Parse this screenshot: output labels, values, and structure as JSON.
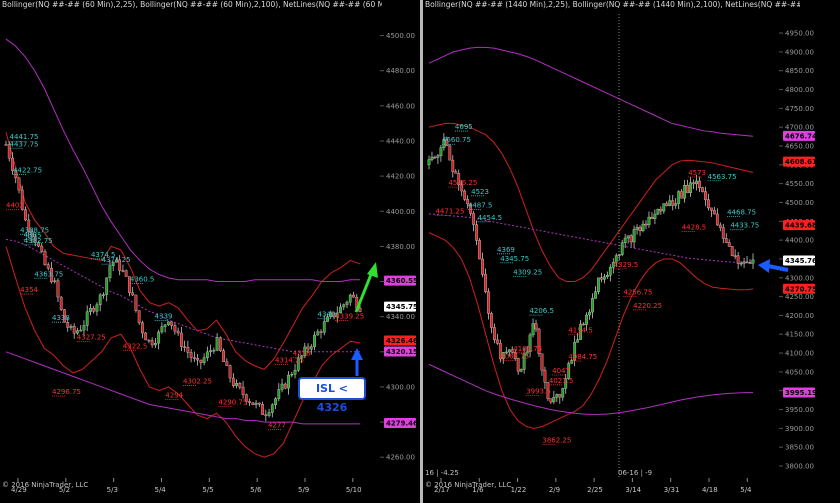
{
  "left_panel": {
    "title": "Bollinger(NQ ##-## (60 Min),2,25), Bollinger(NQ ##-## (60 Min),2,100), NetLines(NQ ##-## (60 Min),3,5,Color [Lime],C",
    "copyright": "© 2016 NinjaTrader, LLC",
    "annotation": "ISL < 4326",
    "price_badges": [
      {
        "label": "4360.55",
        "color": "#e040e0"
      },
      {
        "label": "4345.75",
        "color": "#ffffff"
      },
      {
        "label": "4326.46",
        "color": "#ff2020"
      },
      {
        "label": "4320.15",
        "color": "#e040e0"
      },
      {
        "label": "4279.46",
        "color": "#e040e0"
      }
    ],
    "value_labels": [
      {
        "text": "4441.75",
        "color": "#40c8c8"
      },
      {
        "text": "4437.75",
        "color": "#40c8c8"
      },
      {
        "text": "4422.75",
        "color": "#40c8c8"
      },
      {
        "text": "4402",
        "color": "#ff3030"
      },
      {
        "text": "4388.75",
        "color": "#40c8c8"
      },
      {
        "text": "4385",
        "color": "#40c8c8"
      },
      {
        "text": "4382.75",
        "color": "#40c8c8"
      },
      {
        "text": "4374.5",
        "color": "#40c8c8"
      },
      {
        "text": "4371.25",
        "color": "#40c8c8"
      },
      {
        "text": "4363.75",
        "color": "#40c8c8"
      },
      {
        "text": "4360.5",
        "color": "#40c8c8"
      },
      {
        "text": "4354",
        "color": "#ff3030"
      },
      {
        "text": "4339",
        "color": "#40c8c8"
      },
      {
        "text": "4338",
        "color": "#40c8c8"
      },
      {
        "text": "4327.25",
        "color": "#ff3030"
      },
      {
        "text": "4322.5",
        "color": "#ff3030"
      },
      {
        "text": "4296.75",
        "color": "#ff3030"
      },
      {
        "text": "4302.25",
        "color": "#ff3030"
      },
      {
        "text": "4294",
        "color": "#ff3030"
      },
      {
        "text": "4290.75",
        "color": "#ff3030"
      },
      {
        "text": "4277",
        "color": "#ff3030"
      },
      {
        "text": "4314.25",
        "color": "#ff3030"
      },
      {
        "text": "4318",
        "color": "#ff3030"
      },
      {
        "text": "4339.25",
        "color": "#ff3030"
      },
      {
        "text": "4340",
        "color": "#40c8c8"
      }
    ],
    "chart_data": {
      "type": "candlestick",
      "title": "",
      "x_ticks": [
        "4/29",
        "5/2",
        "5/3",
        "5/4",
        "5/5",
        "5/6",
        "5/9",
        "5/10"
      ],
      "ylim": [
        4255,
        4510
      ],
      "y_ticks": [
        4500,
        4480,
        4460,
        4440,
        4420,
        4400,
        4380,
        4360,
        4340,
        4320,
        4300,
        4280,
        4260
      ],
      "y_tick_labels": [
        "4500.00",
        "4480.00",
        "4460.00",
        "4440.00",
        "4420.00",
        "4400.00",
        "4380.00",
        "4360.00",
        "4340.00",
        "4320.00",
        "4300.00",
        "4280.00",
        "4260.00"
      ],
      "series": [
        {
          "kind": "close",
          "values": [
            4438,
            4420,
            4395,
            4385,
            4370,
            4360,
            4338,
            4330,
            4335,
            4345,
            4352,
            4372,
            4368,
            4355,
            4335,
            4325,
            4330,
            4340,
            4328,
            4320,
            4312,
            4318,
            4326,
            4310,
            4300,
            4295,
            4290,
            4285,
            4292,
            4300,
            4310,
            4318,
            4326,
            4334,
            4340,
            4345,
            4352,
            4346
          ]
        },
        {
          "kind": "bollinger-25-upper",
          "values": [
            4445,
            4425,
            4405,
            4395,
            4388,
            4380,
            4376,
            4375,
            4374,
            4373,
            4372,
            4380,
            4378,
            4368,
            4355,
            4348,
            4346,
            4348,
            4345,
            4338,
            4332,
            4333,
            4338,
            4330,
            4320,
            4315,
            4312,
            4310,
            4316,
            4325,
            4335,
            4345,
            4352,
            4360,
            4365,
            4368,
            4372,
            4370
          ]
        },
        {
          "kind": "bollinger-25-lower",
          "values": [
            4380,
            4362,
            4345,
            4332,
            4322,
            4318,
            4312,
            4308,
            4310,
            4315,
            4320,
            4328,
            4330,
            4322,
            4310,
            4300,
            4298,
            4300,
            4296,
            4290,
            4284,
            4282,
            4285,
            4280,
            4272,
            4266,
            4262,
            4260,
            4262,
            4268,
            4280,
            4292,
            4302,
            4312,
            4318,
            4322,
            4326,
            4325
          ]
        },
        {
          "kind": "bollinger-100-upper",
          "values": [
            4498,
            4494,
            4488,
            4480,
            4470,
            4458,
            4446,
            4435,
            4425,
            4414,
            4403,
            4394,
            4386,
            4378,
            4372,
            4367,
            4364,
            4362,
            4361,
            4361,
            4361,
            4361,
            4360,
            4360,
            4360,
            4360,
            4361,
            4361,
            4361,
            4361,
            4361,
            4361,
            4361,
            4360,
            4360,
            4360,
            4361,
            4361
          ]
        },
        {
          "kind": "bollinger-100-mid",
          "values": [
            4384,
            4383,
            4381,
            4378,
            4375,
            4372,
            4369,
            4366,
            4363,
            4360,
            4357,
            4354,
            4352,
            4349,
            4346,
            4343,
            4341,
            4338,
            4336,
            4334,
            4332,
            4330,
            4328,
            4327,
            4326,
            4325,
            4324,
            4323,
            4322,
            4321,
            4320,
            4320,
            4320,
            4320,
            4320,
            4320,
            4320,
            4320
          ]
        },
        {
          "kind": "bollinger-100-lower",
          "values": [
            4320,
            4318,
            4316,
            4314,
            4312,
            4310,
            4308,
            4306,
            4304,
            4302,
            4300,
            4298,
            4296,
            4294,
            4292,
            4290,
            4289,
            4288,
            4287,
            4286,
            4285,
            4284,
            4283,
            4282,
            4282,
            4281,
            4281,
            4280,
            4280,
            4280,
            4280,
            4279,
            4279,
            4279,
            4279,
            4279,
            4279,
            4279
          ]
        }
      ]
    }
  },
  "right_panel": {
    "title": "Bollinger(NQ ##-## (1440 Min),2,25), Bollinger(NQ ##-## (1440 Min),2,100), NetLines(NQ ##-## (1440 Min),3,5,Color [Lime],C",
    "copyright": "© 2016 NinjaTrader, LLC",
    "bottom_left_note": "16 | -4.25",
    "bottom_mid_note": "06-16 | -9",
    "price_badges": [
      {
        "label": "4676.74",
        "color": "#e040e0"
      },
      {
        "label": "4608.61",
        "color": "#ff2020"
      },
      {
        "label": "4439.68",
        "color": "#ff2020"
      },
      {
        "label": "4345.76",
        "color": "#ffffff"
      },
      {
        "label": "4270.75",
        "color": "#ff2020"
      },
      {
        "label": "3995.19",
        "color": "#e040e0"
      }
    ],
    "value_labels": [
      {
        "text": "4695",
        "color": "#40c8c8"
      },
      {
        "text": "4660.75",
        "color": "#40c8c8"
      },
      {
        "text": "4546.25",
        "color": "#ff3030"
      },
      {
        "text": "4523",
        "color": "#40c8c8"
      },
      {
        "text": "4487.5",
        "color": "#40c8c8"
      },
      {
        "text": "4471.25",
        "color": "#ff3030"
      },
      {
        "text": "4454.5",
        "color": "#40c8c8"
      },
      {
        "text": "4369",
        "color": "#40c8c8"
      },
      {
        "text": "4345.75",
        "color": "#40c8c8"
      },
      {
        "text": "4309.25",
        "color": "#40c8c8"
      },
      {
        "text": "4206.5",
        "color": "#40c8c8"
      },
      {
        "text": "4154.5",
        "color": "#ff3030"
      },
      {
        "text": "4106.75",
        "color": "#ff3030"
      },
      {
        "text": "4085.75",
        "color": "#ff3030"
      },
      {
        "text": "4084.75",
        "color": "#ff3030"
      },
      {
        "text": "4047",
        "color": "#ff3030"
      },
      {
        "text": "4021.5",
        "color": "#ff3030"
      },
      {
        "text": "3993.5",
        "color": "#ff3030"
      },
      {
        "text": "3862.25",
        "color": "#ff3030"
      },
      {
        "text": "4329.5",
        "color": "#ff3030"
      },
      {
        "text": "4256.75",
        "color": "#ff3030"
      },
      {
        "text": "4220.25",
        "color": "#ff3030"
      },
      {
        "text": "4428.5",
        "color": "#ff3030"
      },
      {
        "text": "4468.75",
        "color": "#40c8c8"
      },
      {
        "text": "4433.75",
        "color": "#40c8c8"
      },
      {
        "text": "4573",
        "color": "#ff3030"
      },
      {
        "text": "4563.75",
        "color": "#40c8c8"
      }
    ],
    "chart_data": {
      "type": "candlestick",
      "title": "",
      "x_ticks": [
        "2/17",
        "1/6",
        "1/22",
        "2/9",
        "2/25",
        "3/14",
        "3/31",
        "4/18",
        "5/4"
      ],
      "ylim": [
        3800,
        4990
      ],
      "y_ticks": [
        4950,
        4900,
        4850,
        4800,
        4750,
        4700,
        4650,
        4600,
        4550,
        4500,
        4450,
        4400,
        4350,
        4300,
        4250,
        4200,
        4150,
        4100,
        4050,
        4000,
        3950,
        3900,
        3850,
        3800
      ],
      "y_tick_labels": [
        "4950.00",
        "4900.00",
        "4850.00",
        "4800.00",
        "4750.00",
        "4700.00",
        "4650.00",
        "4600.00",
        "4550.00",
        "4500.00",
        "4450.00",
        "4400.00",
        "4350.00",
        "4300.00",
        "4250.00",
        "4200.00",
        "4150.00",
        "4100.00",
        "4050.00",
        "4000.00",
        "3950.00",
        "3900.00",
        "3850.00",
        "3800.00"
      ],
      "series": [
        {
          "kind": "close",
          "values": [
            4600,
            4630,
            4660,
            4590,
            4540,
            4480,
            4380,
            4250,
            4150,
            4080,
            4120,
            4050,
            4100,
            4180,
            4060,
            3960,
            3980,
            4050,
            4120,
            4180,
            4230,
            4300,
            4320,
            4360,
            4390,
            4410,
            4430,
            4450,
            4470,
            4490,
            4500,
            4520,
            4540,
            4560,
            4520,
            4470,
            4420,
            4380,
            4350,
            4330,
            4345
          ]
        },
        {
          "kind": "bollinger-25-upper",
          "values": [
            4700,
            4705,
            4710,
            4710,
            4705,
            4700,
            4690,
            4680,
            4660,
            4630,
            4590,
            4540,
            4480,
            4420,
            4370,
            4330,
            4300,
            4290,
            4290,
            4300,
            4320,
            4350,
            4380,
            4410,
            4440,
            4470,
            4500,
            4530,
            4560,
            4580,
            4600,
            4610,
            4612,
            4610,
            4608,
            4605,
            4600,
            4595,
            4590,
            4585,
            4580
          ]
        },
        {
          "kind": "bollinger-25-lower",
          "values": [
            4420,
            4410,
            4400,
            4380,
            4350,
            4300,
            4230,
            4150,
            4070,
            4000,
            3950,
            3920,
            3905,
            3900,
            3905,
            3915,
            3925,
            3935,
            3945,
            3960,
            3990,
            4030,
            4080,
            4140,
            4200,
            4250,
            4290,
            4320,
            4340,
            4350,
            4350,
            4340,
            4320,
            4300,
            4285,
            4275,
            4272,
            4270,
            4268,
            4268,
            4270
          ]
        },
        {
          "kind": "bollinger-100-upper",
          "values": [
            4870,
            4880,
            4890,
            4900,
            4905,
            4910,
            4912,
            4912,
            4910,
            4905,
            4900,
            4895,
            4888,
            4880,
            4870,
            4860,
            4850,
            4840,
            4830,
            4820,
            4810,
            4800,
            4790,
            4780,
            4770,
            4760,
            4750,
            4740,
            4730,
            4720,
            4710,
            4705,
            4700,
            4695,
            4690,
            4688,
            4684,
            4682,
            4680,
            4678,
            4676
          ]
        },
        {
          "kind": "bollinger-100-mid",
          "values": [
            4470,
            4468,
            4466,
            4464,
            4462,
            4460,
            4456,
            4452,
            4448,
            4444,
            4440,
            4436,
            4432,
            4428,
            4424,
            4420,
            4416,
            4412,
            4408,
            4404,
            4400,
            4396,
            4392,
            4388,
            4384,
            4380,
            4376,
            4372,
            4368,
            4364,
            4360,
            4356,
            4352,
            4350,
            4348,
            4346,
            4344,
            4342,
            4341,
            4340,
            4340
          ]
        },
        {
          "kind": "bollinger-100-lower",
          "values": [
            4070,
            4060,
            4050,
            4040,
            4030,
            4020,
            4010,
            4000,
            3992,
            3985,
            3978,
            3972,
            3966,
            3960,
            3955,
            3950,
            3946,
            3943,
            3940,
            3938,
            3937,
            3937,
            3938,
            3940,
            3943,
            3947,
            3951,
            3955,
            3960,
            3965,
            3970,
            3975,
            3979,
            3983,
            3986,
            3989,
            3991,
            3993,
            3994,
            3995,
            3995
          ]
        }
      ]
    }
  }
}
